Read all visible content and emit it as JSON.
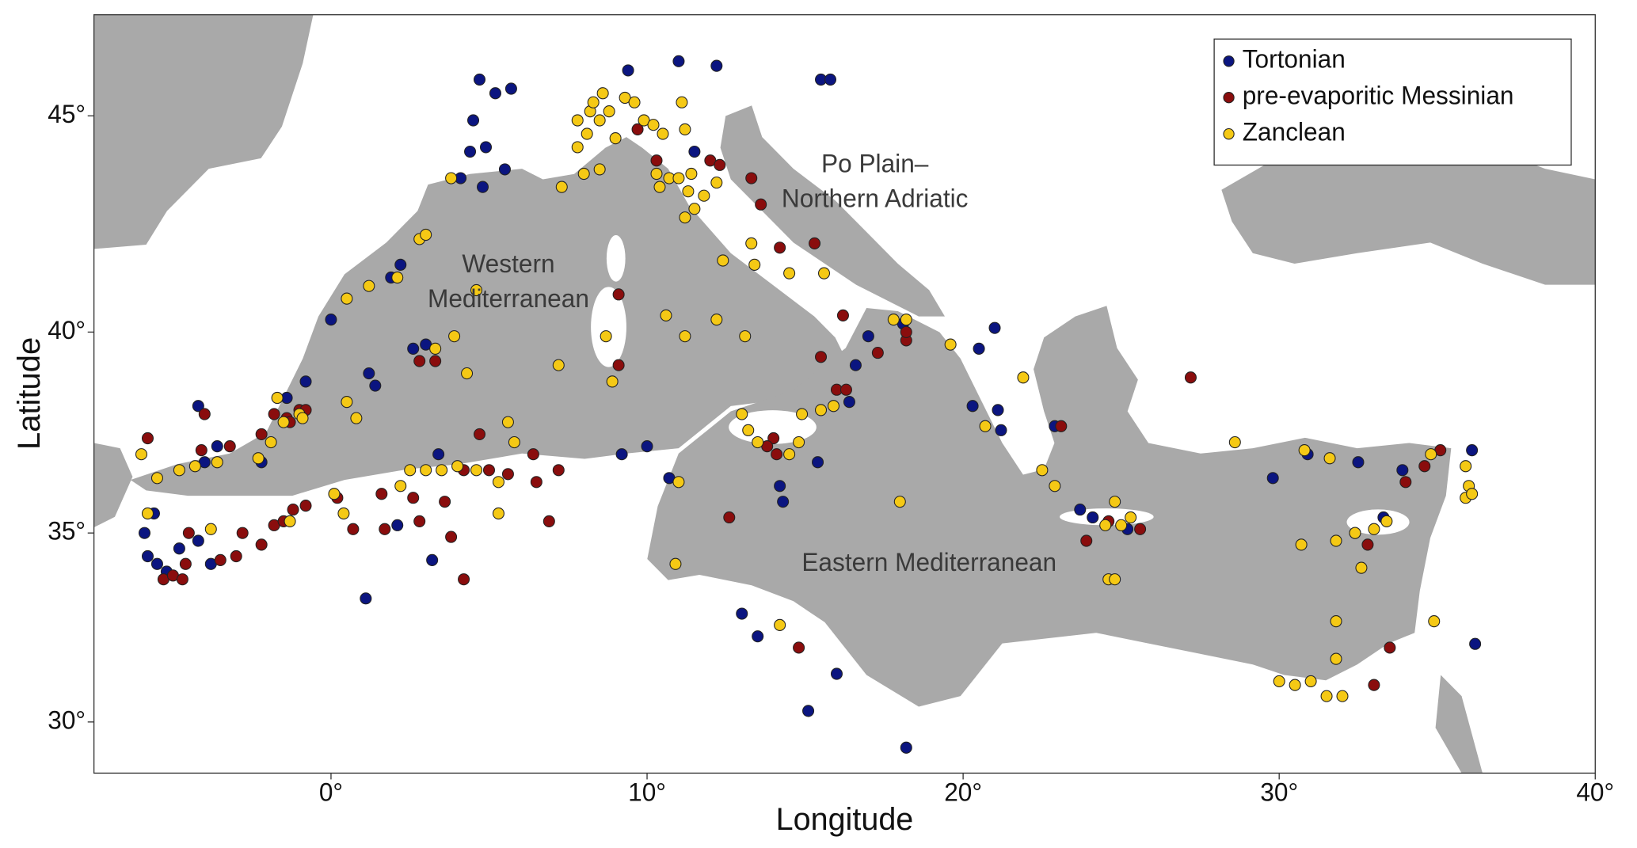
{
  "chart_data": {
    "type": "scatter",
    "projection": "mercator",
    "xlabel": "Longitude",
    "ylabel": "Latitude",
    "xlim": [
      -7.5,
      40
    ],
    "ylim": [
      28.6,
      47.2
    ],
    "xticks": [
      {
        "value": 0,
        "label": "0°"
      },
      {
        "value": 10,
        "label": "10°"
      },
      {
        "value": 20,
        "label": "20°"
      },
      {
        "value": 30,
        "label": "30°"
      },
      {
        "value": 40,
        "label": "40°"
      }
    ],
    "yticks": [
      {
        "value": 30,
        "label": "30°"
      },
      {
        "value": 35,
        "label": "35°"
      },
      {
        "value": 40,
        "label": "40°"
      },
      {
        "value": 45,
        "label": "45°"
      }
    ],
    "legend": "top-right",
    "annotations": [
      {
        "text": [
          "Western",
          "Mediterranean"
        ]
      },
      {
        "text": [
          "Po Plain–",
          "Northern Adriatic"
        ]
      },
      {
        "text": [
          "Eastern Mediterranean"
        ]
      }
    ],
    "series": [
      {
        "name": "Tortonian",
        "color": "#0b1580",
        "x": [
          -5.8,
          -5.5,
          -5.2,
          -4.8,
          -4.2,
          -3.8,
          -5.9,
          -5.6,
          -4,
          -3.6,
          -2.2,
          -4.2,
          -1.4,
          -0.8,
          0,
          1.9,
          2.2,
          1.2,
          1.4,
          2.6,
          3.0,
          4.1,
          4.4,
          4.5,
          4.7,
          5.2,
          5.7,
          4.9,
          5.5,
          4.8,
          2.1,
          3.2,
          1.1,
          3.4,
          9.4,
          11,
          12.2,
          11.5,
          9.2,
          10,
          10.7,
          14.2,
          14.3,
          15.4,
          16.4,
          16.6,
          17,
          18.1,
          20.5,
          21,
          20.3,
          21.1,
          21.2,
          22.9,
          23.7,
          24.1,
          25.2,
          29.8,
          30.9,
          32.5,
          33.9,
          36.1,
          36.2,
          32.4,
          33.3,
          13,
          13.5,
          15.1,
          16,
          18.2,
          15.5,
          15.8
        ],
        "values": [
          34.4,
          34.2,
          34.0,
          34.6,
          34.8,
          34.2,
          35.0,
          35.5,
          36.8,
          37.2,
          36.8,
          38.2,
          38.4,
          38.8,
          40.3,
          41.3,
          41.6,
          39.0,
          38.7,
          39.6,
          39.7,
          43.6,
          44.2,
          44.9,
          45.8,
          45.5,
          45.6,
          44.3,
          43.8,
          43.4,
          35.2,
          34.3,
          33.3,
          37.0,
          46,
          46.2,
          46.1,
          44.2,
          37.0,
          37.2,
          36.4,
          36.2,
          35.8,
          36.8,
          38.3,
          39.2,
          39.9,
          40.2,
          39.6,
          40.1,
          38.2,
          38.1,
          37.6,
          37.7,
          35.6,
          35.4,
          35.1,
          36.4,
          37,
          36.8,
          36.6,
          37.1,
          32.1,
          35,
          35.4,
          32.9,
          32.3,
          30.3,
          31.3,
          29.3,
          45.8,
          45.8
        ]
      },
      {
        "name": "pre-evaporitic Messinian",
        "color": "#8a0d0d",
        "x": [
          -5.3,
          -5.0,
          -4.7,
          -4.6,
          -4.5,
          -3.5,
          -3,
          -2.8,
          -2.2,
          -1.8,
          -1.5,
          -1.2,
          -0.8,
          0.2,
          0.7,
          1.7,
          1.6,
          2.6,
          2.8,
          3.6,
          4.2,
          5.0,
          5.6,
          6.5,
          7.2,
          6.9,
          3.8,
          4.2,
          -5.8,
          -4.1,
          -3.2,
          -2.2,
          -1.8,
          -1.4,
          -1,
          -0.8,
          -1.3,
          2.8,
          3.3,
          4.7,
          6.4,
          9.1,
          9.1,
          10.3,
          9.7,
          12,
          12.3,
          13.3,
          13.6,
          15.3,
          14.2,
          16.2,
          15.5,
          16,
          16.3,
          17.3,
          14,
          13.8,
          14.1,
          12.6,
          14.8,
          23.9,
          24.6,
          25.6,
          27.2,
          33,
          33.5,
          34,
          34.6,
          35.1,
          23.1,
          32.8,
          18.2,
          18.2,
          -4.0
        ],
        "values": [
          33.8,
          33.9,
          33.8,
          34.2,
          35,
          34.3,
          34.4,
          35.0,
          34.7,
          35.2,
          35.3,
          35.6,
          35.7,
          35.9,
          35.1,
          35.1,
          36,
          35.9,
          35.3,
          35.8,
          36.6,
          36.6,
          36.5,
          36.3,
          36.6,
          35.3,
          34.9,
          33.8,
          37.4,
          37.1,
          37.2,
          37.5,
          38.0,
          37.9,
          38.1,
          38.1,
          37.8,
          39.3,
          39.3,
          37.5,
          37,
          40.9,
          39.2,
          44.0,
          44.7,
          44.0,
          43.9,
          43.6,
          43,
          42.1,
          42.0,
          40.4,
          39.4,
          38.6,
          38.6,
          39.5,
          37.4,
          37.2,
          37,
          35.4,
          32,
          34.8,
          35.3,
          35.1,
          38.9,
          31,
          32,
          36.3,
          36.7,
          37.1,
          37.7,
          34.7,
          39.8,
          40,
          38.0
        ]
      },
      {
        "name": "Zanclean",
        "color": "#f5c915",
        "x": [
          -6,
          -5.5,
          -4.8,
          -4.3,
          -3.6,
          -2.3,
          -1.9,
          -1.5,
          -1.0,
          -0.9,
          -1.7,
          -5.8,
          -3.8,
          -1.3,
          0.1,
          0.4,
          2.2,
          3.0,
          3.5,
          4.0,
          4.6,
          5.3,
          5.3,
          5.8,
          5.6,
          4.6,
          0.5,
          1.2,
          2.8,
          3.0,
          2.1,
          3.8,
          3.3,
          3.9,
          4.3,
          0.5,
          0.8,
          7.3,
          8,
          8.5,
          7.2,
          7.8,
          8.1,
          8.5,
          8.8,
          8.2,
          7.8,
          9.0,
          9.3,
          9.6,
          9.9,
          10.2,
          10.5,
          11.2,
          11.1,
          8.3,
          8.6,
          10.3,
          10.4,
          10.7,
          11,
          11.3,
          11.4,
          11.5,
          11.2,
          12.2,
          11.8,
          12.4,
          13.3,
          13.4,
          14.5,
          15.6,
          10.6,
          11.2,
          12.2,
          13.1,
          8.7,
          8.9,
          13.0,
          13.2,
          13.5,
          14.9,
          15.5,
          15.9,
          14.8,
          14.5,
          10.9,
          11,
          14.2,
          18,
          17.8,
          18.2,
          19.6,
          20.7,
          21.9,
          22.5,
          22.9,
          24.6,
          24.8,
          24.8,
          24.5,
          25,
          25.3,
          28.6,
          30.7,
          30.8,
          31.6,
          31.8,
          32.4,
          32.6,
          33,
          33.4,
          31.8,
          31.8,
          30,
          30.5,
          31,
          31.5,
          32,
          34.8,
          35.9,
          36.0,
          35.9,
          36.1,
          34.9,
          2.5
        ],
        "values": [
          37,
          36.4,
          36.6,
          36.7,
          36.8,
          36.9,
          37.3,
          37.8,
          38,
          37.9,
          38.4,
          35.5,
          35.1,
          35.3,
          36,
          35.5,
          36.2,
          36.6,
          36.6,
          36.7,
          36.6,
          36.3,
          35.5,
          37.3,
          37.8,
          41,
          40.8,
          41.1,
          42.2,
          42.3,
          41.3,
          43.6,
          39.6,
          39.9,
          39,
          38.3,
          37.9,
          43.4,
          43.7,
          43.8,
          39.2,
          44.3,
          44.6,
          44.9,
          45.1,
          45.1,
          44.9,
          44.5,
          45.4,
          45.3,
          44.9,
          44.8,
          44.6,
          44.7,
          45.3,
          45.3,
          45.5,
          43.7,
          43.4,
          43.6,
          43.6,
          43.3,
          43.7,
          42.9,
          42.7,
          43.5,
          43.2,
          41.7,
          42.1,
          41.6,
          41.4,
          41.4,
          40.4,
          39.9,
          40.3,
          39.9,
          39.9,
          38.8,
          38,
          37.6,
          37.3,
          38,
          38.1,
          38.2,
          37.3,
          37,
          34.2,
          36.3,
          32.6,
          35.8,
          40.3,
          40.3,
          39.7,
          37.7,
          38.9,
          36.6,
          36.2,
          33.8,
          33.8,
          35.8,
          35.2,
          35.2,
          35.4,
          37.3,
          34.7,
          37.1,
          36.9,
          34.8,
          35,
          34.1,
          35.1,
          35.3,
          32.7,
          31.7,
          31.1,
          31,
          31.1,
          30.7,
          30.7,
          37.0,
          36.7,
          36.2,
          35.9,
          36,
          32.7,
          36.6
        ]
      }
    ]
  }
}
